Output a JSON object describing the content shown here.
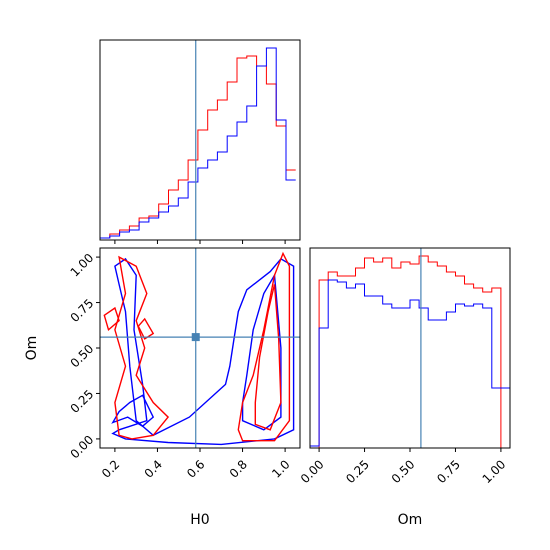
{
  "chart_data": {
    "type": "corner",
    "parameters": [
      "H0",
      "Om"
    ],
    "truths": {
      "H0": 0.58,
      "Om": 0.56
    },
    "truth_color": "#4682b4",
    "series": [
      {
        "color": "#ff0000"
      },
      {
        "color": "#0000ff"
      }
    ],
    "hist_H0": {
      "x_ticks": [
        "0.2",
        "0.4",
        "0.6",
        "0.8",
        "1.0"
      ],
      "xlim": [
        0.13,
        1.07
      ],
      "bins": [
        0.13,
        0.176,
        0.222,
        0.268,
        0.314,
        0.36,
        0.406,
        0.452,
        0.498,
        0.544,
        0.59,
        0.636,
        0.682,
        0.728,
        0.774,
        0.82,
        0.866,
        0.912,
        0.958,
        1.004,
        1.05
      ],
      "red": [
        0.01,
        0.03,
        0.05,
        0.07,
        0.11,
        0.12,
        0.18,
        0.25,
        0.3,
        0.4,
        0.55,
        0.65,
        0.7,
        0.79,
        0.91,
        0.92,
        0.87,
        0.78,
        0.57,
        0.35
      ],
      "blue": [
        0.01,
        0.02,
        0.04,
        0.05,
        0.09,
        0.11,
        0.14,
        0.17,
        0.21,
        0.29,
        0.36,
        0.4,
        0.44,
        0.52,
        0.59,
        0.67,
        0.87,
        0.96,
        0.6,
        0.3
      ]
    },
    "scatter": {
      "xlabel": "H0",
      "ylabel": "Om",
      "x_ticks": [
        "0.2",
        "0.4",
        "0.6",
        "0.8",
        "1.0"
      ],
      "y_ticks": [
        "0.00",
        "0.25",
        "0.50",
        "0.75",
        "1.00"
      ],
      "xlim": [
        0.13,
        1.07
      ],
      "ylim": [
        -0.05,
        1.05
      ]
    },
    "hist_Om": {
      "xlabel": "Om",
      "x_ticks": [
        "0.00",
        "0.25",
        "0.50",
        "0.75",
        "1.00"
      ],
      "xlim": [
        -0.05,
        1.05
      ],
      "bins": [
        -0.05,
        0.0,
        0.05,
        0.1,
        0.15,
        0.2,
        0.25,
        0.3,
        0.35,
        0.4,
        0.45,
        0.5,
        0.55,
        0.6,
        0.65,
        0.7,
        0.75,
        0.8,
        0.85,
        0.9,
        0.95,
        1.0,
        1.05
      ],
      "red": [
        0,
        0.84,
        0.88,
        0.86,
        0.86,
        0.9,
        0.95,
        0.93,
        0.95,
        0.9,
        0.93,
        0.92,
        0.96,
        0.93,
        0.91,
        0.88,
        0.86,
        0.82,
        0.8,
        0.78,
        0.8,
        0
      ],
      "blue": [
        0.01,
        0.6,
        0.84,
        0.83,
        0.8,
        0.82,
        0.76,
        0.76,
        0.72,
        0.7,
        0.7,
        0.74,
        0.7,
        0.64,
        0.64,
        0.68,
        0.72,
        0.71,
        0.72,
        0.7,
        0.3,
        0.3
      ]
    }
  }
}
